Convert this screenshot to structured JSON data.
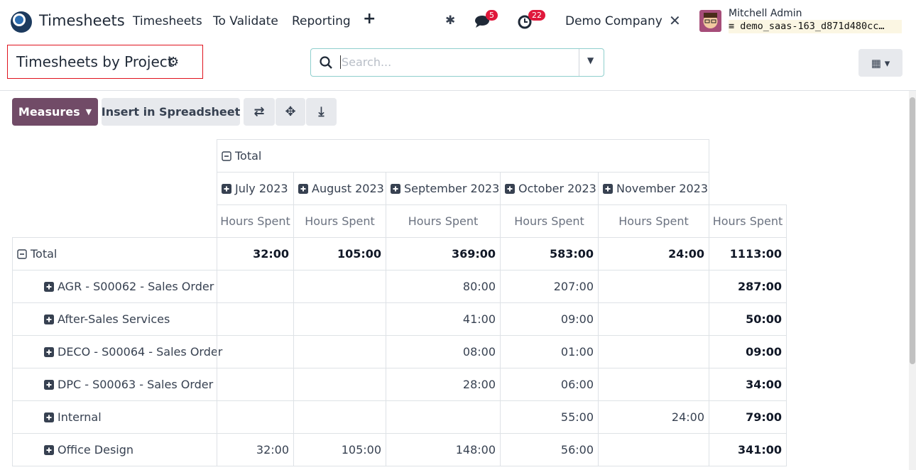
{
  "navbar": {
    "app": "Timesheets",
    "menu": [
      "Timesheets",
      "To Validate",
      "Reporting"
    ],
    "messages_badge": 5,
    "activities_badge": 22,
    "company": "Demo Company",
    "user": "Mitchell Admin",
    "database": "demo_saas-163_d871d480cc…"
  },
  "control_panel": {
    "breadcrumb": "Timesheets by Project",
    "search_placeholder": "Search...",
    "measures_button": "Measures",
    "spreadsheet_button": "Insert in Spreadsheet"
  },
  "pivot": {
    "column_total": "Total",
    "months": [
      "July 2023",
      "August 2023",
      "September 2023",
      "October 2023",
      "November 2023"
    ],
    "measure": "Hours Spent",
    "rows": [
      {
        "label": "Total",
        "cells": [
          "32:00",
          "105:00",
          "369:00",
          "583:00",
          "24:00",
          "1113:00"
        ]
      },
      {
        "label": "AGR - S00062 - Sales Order",
        "cells": [
          null,
          null,
          "80:00",
          "207:00",
          null,
          "287:00"
        ]
      },
      {
        "label": "After-Sales Services",
        "cells": [
          null,
          null,
          "41:00",
          "09:00",
          null,
          "50:00"
        ]
      },
      {
        "label": "DECO - S00064 - Sales Order",
        "cells": [
          null,
          null,
          "08:00",
          "01:00",
          null,
          "09:00"
        ]
      },
      {
        "label": "DPC - S00063 - Sales Order",
        "cells": [
          null,
          null,
          "28:00",
          "06:00",
          null,
          "34:00"
        ]
      },
      {
        "label": "Internal",
        "cells": [
          null,
          null,
          null,
          "55:00",
          "24:00",
          "79:00"
        ]
      },
      {
        "label": "Office Design",
        "cells": [
          "32:00",
          "105:00",
          "148:00",
          "56:00",
          null,
          "341:00"
        ]
      }
    ]
  }
}
